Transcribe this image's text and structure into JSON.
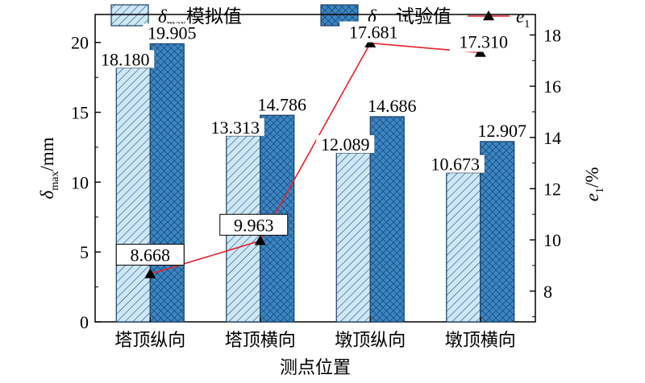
{
  "chart_data": {
    "type": "bar",
    "categories": [
      "塔顶纵向",
      "塔顶横向",
      "墩顶纵向",
      "墩顶横向"
    ],
    "xlabel": "测点位置",
    "ylabel_left": {
      "symbol": "δ",
      "sub": "max",
      "unit": "/mm"
    },
    "ylabel_right": {
      "symbol": "e",
      "sub": "1",
      "unit": "/%"
    },
    "ylim_left": [
      0,
      22
    ],
    "yticks_left": [
      0,
      5,
      10,
      15,
      20
    ],
    "ylim_right": [
      6.8,
      18.8
    ],
    "yticks_right": [
      8,
      10,
      12,
      14,
      16,
      18
    ],
    "grid": false,
    "legend_position": "top",
    "series": [
      {
        "name": {
          "symbol": "δ",
          "sub": "max",
          "suffix": "模拟值"
        },
        "kind": "bar",
        "axis": "left",
        "pattern": "hatch",
        "values": [
          18.18,
          13.313,
          12.089,
          10.673
        ],
        "labels": [
          "18.180",
          "13.313",
          "12.089",
          "10.673"
        ]
      },
      {
        "name": {
          "symbol": "δ",
          "sub": "max",
          "suffix": "试验值"
        },
        "kind": "bar",
        "axis": "left",
        "pattern": "crosshatch",
        "values": [
          19.905,
          14.786,
          14.686,
          12.907
        ],
        "labels": [
          "19.905",
          "14.786",
          "14.686",
          "12.907"
        ]
      },
      {
        "name": {
          "symbol": "e",
          "sub": "1",
          "suffix": ""
        },
        "kind": "line",
        "axis": "right",
        "marker": "triangle",
        "values": [
          8.668,
          9.963,
          17.681,
          17.31
        ],
        "labels": [
          "8.668",
          "9.963",
          "17.681",
          "17.310"
        ]
      }
    ],
    "colors": {
      "bar_fill_light": "#cde7f7",
      "bar_fill_dark": "#2f78b5",
      "bar_stroke": "#1b3f66",
      "line": "#e8202a",
      "marker": "#000000"
    }
  }
}
